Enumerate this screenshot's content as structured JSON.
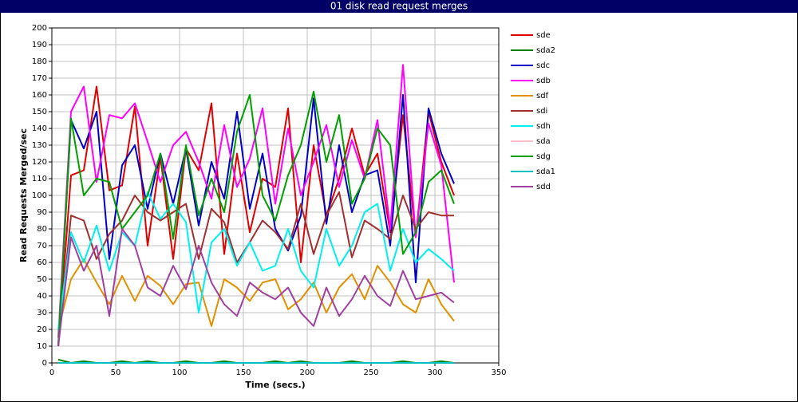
{
  "chart_data": {
    "type": "line",
    "title": "01 disk read request merges",
    "x_label": "Time (secs.)",
    "y_label": "Read Requests Merged/sec",
    "x": [
      5,
      15,
      25,
      35,
      45,
      55,
      65,
      75,
      85,
      95,
      105,
      115,
      125,
      135,
      145,
      155,
      165,
      175,
      185,
      195,
      205,
      215,
      225,
      235,
      245,
      255,
      265,
      275,
      285,
      295,
      305,
      315
    ],
    "xlim": [
      0,
      350
    ],
    "xticks": [
      0,
      50,
      100,
      150,
      200,
      250,
      300,
      350
    ],
    "ylim": [
      0,
      200
    ],
    "yticks": [
      0,
      10,
      20,
      30,
      40,
      50,
      60,
      70,
      80,
      90,
      100,
      110,
      120,
      130,
      140,
      150,
      160,
      170,
      180,
      190,
      200
    ],
    "grid": true,
    "legend": "right",
    "series": [
      {
        "name": "sde",
        "color": "#e00000",
        "values": [
          10,
          112,
          115,
          165,
          103,
          106,
          153,
          70,
          123,
          62,
          128,
          115,
          155,
          65,
          125,
          78,
          110,
          105,
          152,
          60,
          130,
          88,
          110,
          140,
          112,
          125,
          78,
          148,
          75,
          150,
          120,
          100
        ]
      },
      {
        "name": "sda2",
        "color": "#008000",
        "values": [
          2,
          0,
          1,
          0,
          0,
          1,
          0,
          1,
          0,
          0,
          1,
          0,
          0,
          1,
          0,
          0,
          0,
          1,
          0,
          1,
          0,
          0,
          0,
          1,
          0,
          0,
          0,
          1,
          0,
          0,
          1,
          0
        ]
      },
      {
        "name": "sdc",
        "color": "#0000c8",
        "values": [
          10,
          145,
          128,
          150,
          62,
          118,
          130,
          92,
          125,
          95,
          128,
          82,
          120,
          98,
          150,
          92,
          125,
          80,
          67,
          88,
          158,
          83,
          130,
          90,
          112,
          115,
          70,
          160,
          48,
          152,
          125,
          107
        ]
      },
      {
        "name": "sdb",
        "color": "#ff00ff",
        "values": [
          15,
          150,
          165,
          108,
          148,
          146,
          155,
          132,
          108,
          130,
          138,
          120,
          98,
          142,
          105,
          122,
          152,
          95,
          140,
          100,
          120,
          142,
          105,
          133,
          110,
          145,
          80,
          178,
          75,
          143,
          118,
          48
        ]
      },
      {
        "name": "sdf",
        "color": "#e09000",
        "values": [
          20,
          50,
          62,
          48,
          35,
          52,
          37,
          52,
          46,
          35,
          47,
          48,
          22,
          50,
          45,
          37,
          48,
          50,
          32,
          38,
          48,
          30,
          45,
          53,
          38,
          58,
          48,
          35,
          30,
          50,
          35,
          25
        ]
      },
      {
        "name": "sdi",
        "color": "#a03030",
        "values": [
          10,
          88,
          85,
          62,
          77,
          85,
          100,
          90,
          85,
          90,
          95,
          62,
          92,
          84,
          60,
          72,
          85,
          78,
          68,
          95,
          65,
          88,
          102,
          63,
          85,
          80,
          74,
          100,
          80,
          90,
          88,
          88
        ]
      },
      {
        "name": "sdh",
        "color": "#00f0f0",
        "values": [
          20,
          78,
          60,
          82,
          55,
          78,
          70,
          102,
          86,
          95,
          84,
          30,
          72,
          80,
          58,
          72,
          55,
          58,
          80,
          55,
          45,
          80,
          58,
          70,
          90,
          95,
          55,
          80,
          60,
          68,
          62,
          55
        ]
      },
      {
        "name": "sda",
        "color": "#ffc0cb",
        "values": [
          0,
          0,
          0,
          0,
          0,
          0,
          0,
          0,
          0,
          0,
          0,
          0,
          0,
          0,
          0,
          0,
          0,
          0,
          0,
          0,
          0,
          0,
          0,
          0,
          0,
          0,
          0,
          0,
          0,
          0,
          0,
          0
        ]
      },
      {
        "name": "sdg",
        "color": "#00a000",
        "values": [
          10,
          146,
          100,
          110,
          108,
          80,
          90,
          100,
          125,
          74,
          130,
          88,
          110,
          90,
          138,
          160,
          100,
          85,
          112,
          130,
          162,
          120,
          148,
          95,
          110,
          140,
          130,
          65,
          78,
          108,
          115,
          95
        ]
      },
      {
        "name": "sda1",
        "color": "#00c0c0",
        "values": [
          0,
          0,
          0,
          0,
          0,
          0,
          0,
          0,
          0,
          0,
          0,
          0,
          0,
          0,
          0,
          0,
          0,
          0,
          0,
          0,
          0,
          0,
          0,
          0,
          0,
          0,
          0,
          0,
          0,
          0,
          0,
          0
        ]
      },
      {
        "name": "sdd",
        "color": "#a040a0",
        "values": [
          10,
          75,
          55,
          70,
          28,
          80,
          70,
          45,
          40,
          58,
          44,
          70,
          48,
          35,
          28,
          48,
          42,
          38,
          45,
          30,
          22,
          45,
          28,
          38,
          52,
          40,
          34,
          55,
          38,
          40,
          42,
          36
        ]
      }
    ]
  }
}
